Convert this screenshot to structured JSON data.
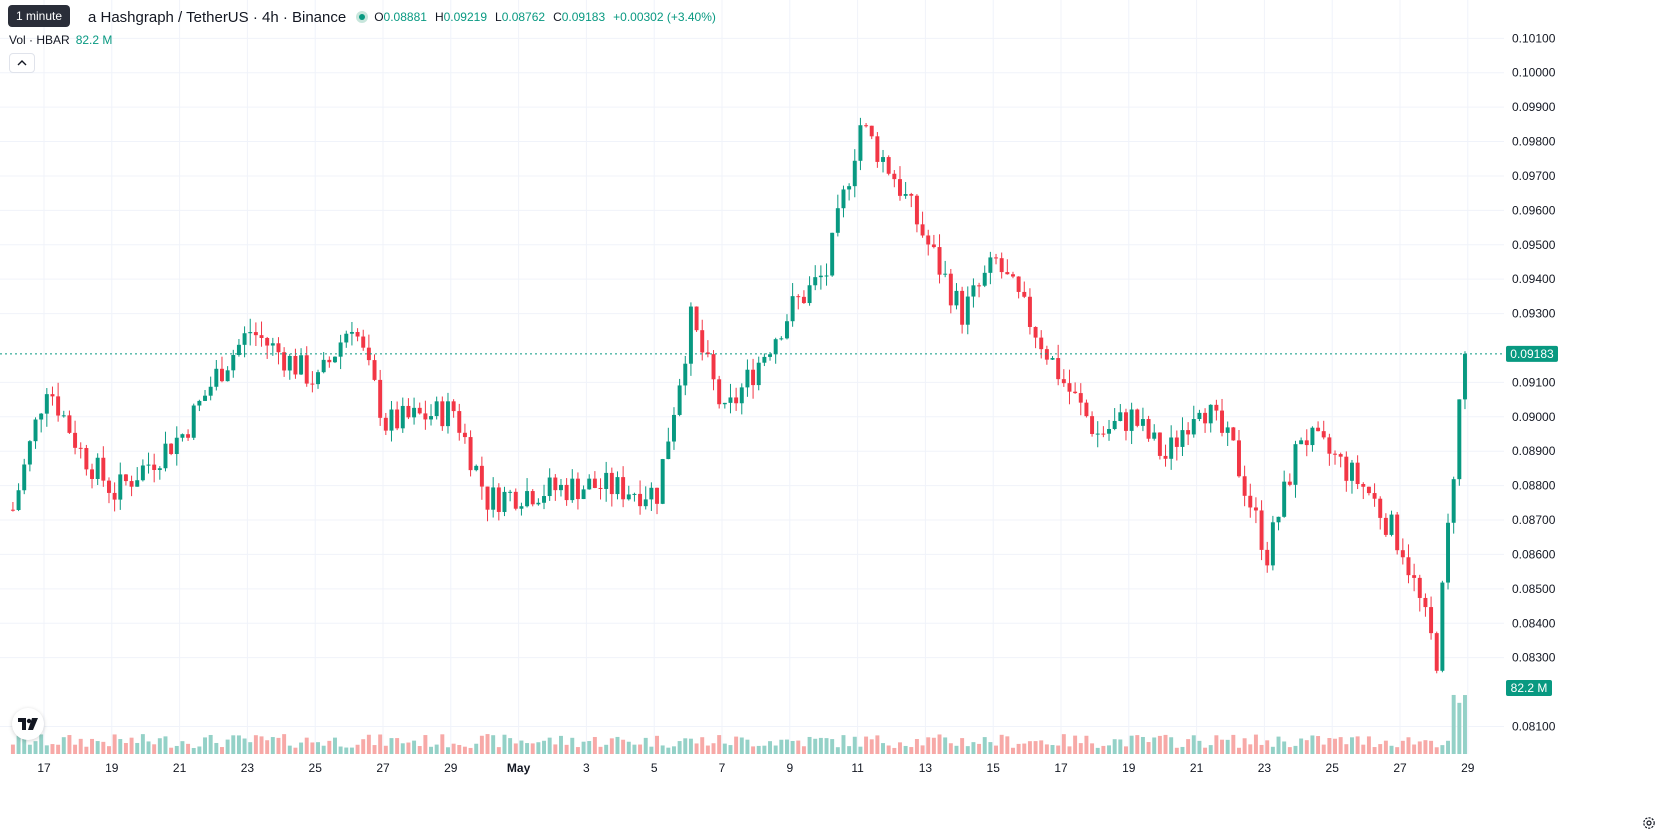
{
  "header": {
    "tooltip": "1 minute",
    "title": "a Hashgraph / TetherUS · 4h · Binance",
    "open_label": "O",
    "open": "0.08881",
    "high_label": "H",
    "high": "0.09219",
    "low_label": "L",
    "low": "0.08762",
    "close_label": "C",
    "close": "0.09183",
    "change": "+0.00302 (+3.40%)",
    "volume_label": "Vol · HBAR",
    "volume_value": "82.2 M"
  },
  "icons": {
    "collapse": "chevron-up-icon",
    "logo": "tradingview-logo",
    "settings": "settings-icon"
  },
  "colors": {
    "up": "#089981",
    "down": "#f23645",
    "up_volume": "#94d1c7",
    "down_volume": "#f7a9a7",
    "grid": "#f0f3fa",
    "text": "#131722"
  },
  "chart_data": {
    "type": "candlestick",
    "price_axis_labels": [
      "0.10100",
      "0.10000",
      "0.09900",
      "0.09800",
      "0.09700",
      "0.09600",
      "0.09500",
      "0.09400",
      "0.09300",
      "0.09100",
      "0.09000",
      "0.08900",
      "0.08800",
      "0.08700",
      "0.08600",
      "0.08500",
      "0.08400",
      "0.08300",
      "0.08100"
    ],
    "time_axis_labels": [
      "17",
      "19",
      "21",
      "23",
      "25",
      "27",
      "29",
      "May",
      "3",
      "5",
      "7",
      "9",
      "11",
      "13",
      "15",
      "17",
      "19",
      "21",
      "23",
      "25",
      "27",
      "29"
    ],
    "ylim": [
      0.0802,
      0.1013
    ],
    "last_price_label": "0.09183",
    "last_volume_label": "82.2 M",
    "grid": true,
    "series": [
      {
        "name": "Hedera Hashgraph / TetherUS",
        "type": "candlestick",
        "ohlc_key_points": [
          {
            "date": "Apr 16",
            "close": 0.0873
          },
          {
            "date": "Apr 17",
            "close": 0.091
          },
          {
            "date": "Apr 18",
            "close": 0.089
          },
          {
            "date": "Apr 19",
            "close": 0.0878
          },
          {
            "date": "Apr 21",
            "close": 0.0895
          },
          {
            "date": "Apr 22",
            "close": 0.0912
          },
          {
            "date": "Apr 23",
            "close": 0.0925
          },
          {
            "date": "Apr 25",
            "close": 0.091
          },
          {
            "date": "Apr 26",
            "close": 0.0928
          },
          {
            "date": "Apr 27",
            "close": 0.0898
          },
          {
            "date": "Apr 29",
            "close": 0.0902
          },
          {
            "date": "Apr 30",
            "close": 0.0876
          },
          {
            "date": "May 1",
            "close": 0.0878
          },
          {
            "date": "May 3",
            "close": 0.088
          },
          {
            "date": "May 5",
            "close": 0.0878
          },
          {
            "date": "May 6",
            "close": 0.0928
          },
          {
            "date": "May 7",
            "close": 0.09
          },
          {
            "date": "May 9",
            "close": 0.0932
          },
          {
            "date": "May 10",
            "close": 0.0942
          },
          {
            "date": "May 11",
            "close": 0.0985
          },
          {
            "date": "May 12",
            "close": 0.097
          },
          {
            "date": "May 13",
            "close": 0.095
          },
          {
            "date": "May 14",
            "close": 0.093
          },
          {
            "date": "May 15",
            "close": 0.0945
          },
          {
            "date": "May 16",
            "close": 0.0928
          },
          {
            "date": "May 17",
            "close": 0.091
          },
          {
            "date": "May 18",
            "close": 0.0895
          },
          {
            "date": "May 19",
            "close": 0.09
          },
          {
            "date": "May 20",
            "close": 0.0888
          },
          {
            "date": "May 21",
            "close": 0.0905
          },
          {
            "date": "May 22",
            "close": 0.089
          },
          {
            "date": "May 23",
            "close": 0.086
          },
          {
            "date": "May 24",
            "close": 0.0895
          },
          {
            "date": "May 25",
            "close": 0.0888
          },
          {
            "date": "May 26",
            "close": 0.0878
          },
          {
            "date": "May 27",
            "close": 0.0862
          },
          {
            "date": "May 28",
            "close": 0.083
          },
          {
            "date": "May 28 20:00",
            "close": 0.09183
          }
        ]
      }
    ]
  }
}
